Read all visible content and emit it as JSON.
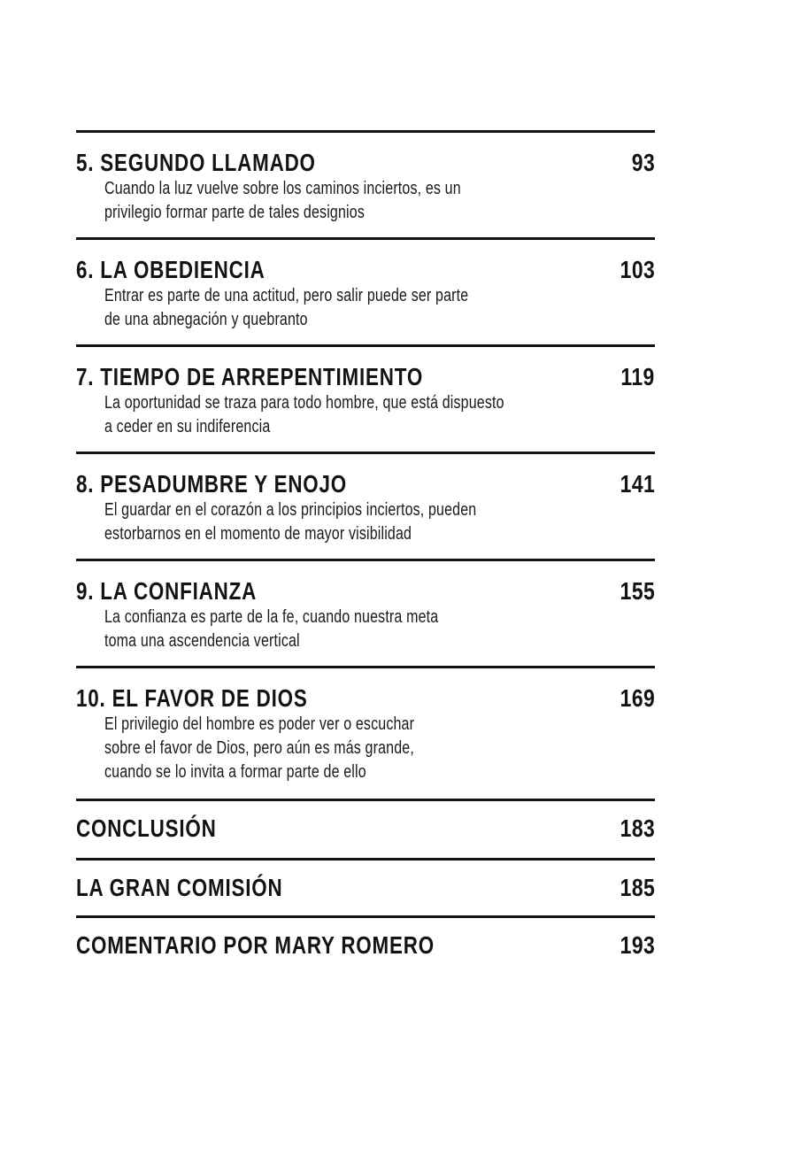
{
  "colors": {
    "background": "#ffffff",
    "text": "#131313",
    "rule": "#131313"
  },
  "toc": {
    "entries": [
      {
        "title": "5. SEGUNDO LLAMADO",
        "page": "93",
        "subtitle_lines": [
          "Cuando la luz vuelve sobre los caminos inciertos, es un",
          "privilegio formar parte de tales designios"
        ]
      },
      {
        "title": "6. LA OBEDIENCIA",
        "page": "103",
        "subtitle_lines": [
          "Entrar es parte de una actitud, pero salir puede ser parte",
          "de una abnegación y quebranto"
        ]
      },
      {
        "title": "7. TIEMPO DE ARREPENTIMIENTO",
        "page": "119",
        "subtitle_lines": [
          "La oportunidad se traza para todo hombre, que está dispuesto",
          "a ceder en su indiferencia"
        ]
      },
      {
        "title": "8. PESADUMBRE Y ENOJO",
        "page": "141",
        "subtitle_lines": [
          "El guardar en el corazón a los principios inciertos, pueden",
          "estorbarnos en el momento de mayor visibilidad"
        ]
      },
      {
        "title": "9. LA CONFIANZA",
        "page": "155",
        "subtitle_lines": [
          "La confianza es parte de la fe, cuando nuestra meta",
          "toma una ascendencia vertical"
        ]
      },
      {
        "title": "10. EL FAVOR DE DIOS",
        "page": "169",
        "subtitle_lines": [
          "El privilegio del hombre es poder ver o escuchar",
          "sobre el favor de Dios, pero aún es más grande,",
          "cuando se lo invita a formar parte de ello"
        ]
      },
      {
        "title": "CONCLUSIÓN",
        "page": "183",
        "subtitle_lines": []
      },
      {
        "title": "LA GRAN COMISIÓN",
        "page": "185",
        "subtitle_lines": []
      },
      {
        "title": "COMENTARIO POR MARY ROMERO",
        "page": "193",
        "subtitle_lines": []
      }
    ]
  }
}
